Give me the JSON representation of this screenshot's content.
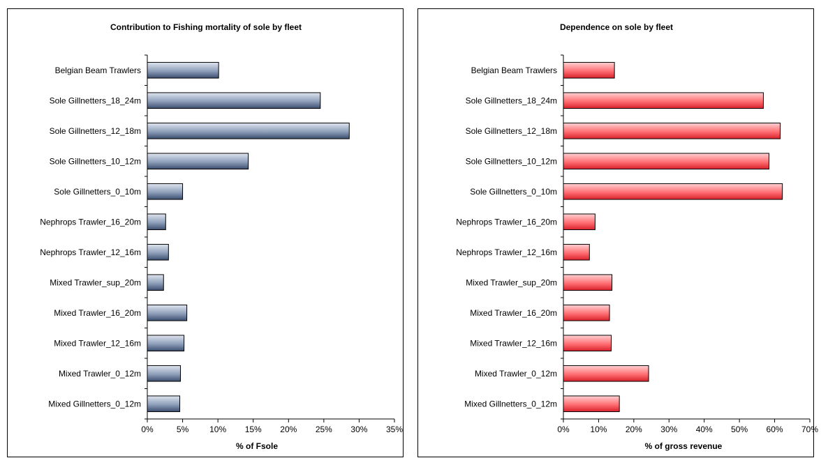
{
  "chart_data": [
    {
      "type": "bar",
      "orientation": "horizontal",
      "title": "Contribution to Fishing mortality of sole by fleet",
      "xlabel": "% of Fsole",
      "ylabel": "",
      "xlim": [
        0,
        35
      ],
      "tick_step": 5,
      "tick_suffix": "%",
      "bar_color": "#8e9fba",
      "grid": false,
      "categories": [
        "Belgian Beam Trawlers",
        "Sole Gillnetters_18_24m",
        "Sole Gillnetters_12_18m",
        "Sole Gillnetters_10_12m",
        "Sole Gillnetters_0_10m",
        "Nephrops Trawler_16_20m",
        "Nephrops Trawler_12_16m",
        "Mixed Trawler_sup_20m",
        "Mixed Trawler_16_20m",
        "Mixed Trawler_12_16m",
        "Mixed Trawler_0_12m",
        "Mixed Gillnetters_0_12m"
      ],
      "values": [
        10.1,
        24.5,
        28.6,
        14.3,
        5.0,
        2.6,
        3.0,
        2.3,
        5.6,
        5.2,
        4.7,
        4.6
      ]
    },
    {
      "type": "bar",
      "orientation": "horizontal",
      "title": "Dependence on sole by fleet",
      "xlabel": "% of gross revenue",
      "ylabel": "",
      "xlim": [
        0,
        70
      ],
      "tick_step": 10,
      "tick_suffix": "%",
      "bar_color": "#ff6f73",
      "grid": false,
      "categories": [
        "Belgian Beam Trawlers",
        "Sole Gillnetters_18_24m",
        "Sole Gillnetters_12_18m",
        "Sole Gillnetters_10_12m",
        "Sole Gillnetters_0_10m",
        "Nephrops Trawler_16_20m",
        "Nephrops Trawler_12_16m",
        "Mixed Trawler_sup_20m",
        "Mixed Trawler_16_20m",
        "Mixed Trawler_12_16m",
        "Mixed Trawler_0_12m",
        "Mixed Gillnetters_0_12m"
      ],
      "values": [
        14.5,
        56.8,
        61.6,
        58.4,
        62.2,
        9.0,
        7.4,
        13.8,
        13.1,
        13.6,
        24.2,
        15.9
      ]
    }
  ]
}
